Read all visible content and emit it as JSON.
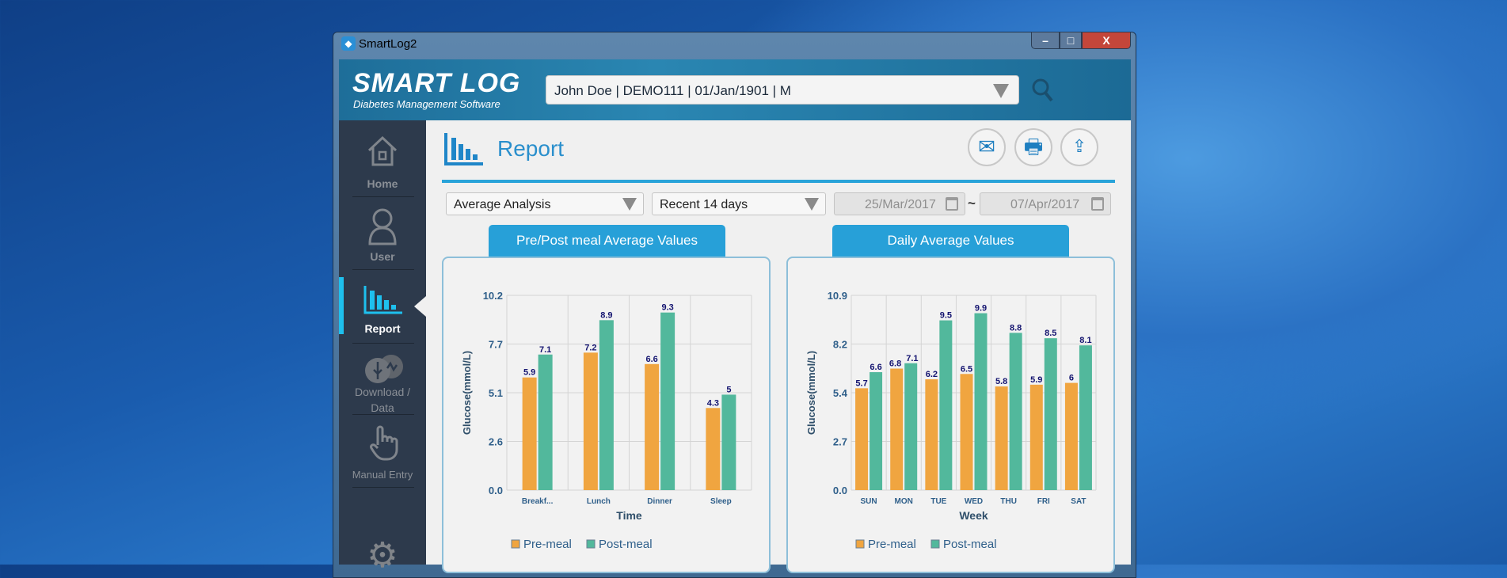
{
  "window": {
    "title": "SmartLog2",
    "controls": [
      "minimize",
      "maximize",
      "close"
    ]
  },
  "header": {
    "logo": "SMART LOG",
    "logo_subtitle": "Diabetes Management Software",
    "patient": "John Doe | DEMO111 | 01/Jan/1901 | M"
  },
  "sidebar": {
    "items": [
      {
        "label": "Home",
        "icon": "home-icon"
      },
      {
        "label": "User",
        "icon": "user-icon"
      },
      {
        "label": "Report",
        "icon": "bar-chart-icon",
        "active": true
      },
      {
        "label1": "Download /",
        "label2": "Data",
        "icon": "usb-sync-icon"
      },
      {
        "label": "Manual Entry",
        "icon": "hand-pointer-icon"
      }
    ],
    "settings_icon": "gear-icon"
  },
  "page": {
    "title": "Report",
    "actions": [
      "email",
      "print",
      "export"
    ]
  },
  "filters": {
    "analysis": "Average Analysis",
    "range": "Recent 14 days",
    "start_date": "25/Mar/2017",
    "separator": "~",
    "end_date": "07/Apr/2017"
  },
  "colors": {
    "pre": "#f0a540",
    "post": "#52b89c",
    "accent": "#27a0d8"
  },
  "chart_data": [
    {
      "type": "bar",
      "title": "Pre/Post meal Average Values",
      "xlabel": "Time",
      "ylabel": "Glucose(mmol/L)",
      "ylim": [
        0,
        10.2
      ],
      "yticks": [
        "0.0",
        "2.6",
        "5.1",
        "7.7",
        "10.2"
      ],
      "grid": true,
      "legend": "bottom",
      "categories": [
        "Breakf...",
        "Lunch",
        "Dinner",
        "Sleep"
      ],
      "series": [
        {
          "name": "Pre-meal",
          "values": [
            5.9,
            7.2,
            6.6,
            4.3
          ]
        },
        {
          "name": "Post-meal",
          "values": [
            7.1,
            8.9,
            9.3,
            5
          ]
        }
      ]
    },
    {
      "type": "bar",
      "title": "Daily Average Values",
      "xlabel": "Week",
      "ylabel": "Glucose(mmol/L)",
      "ylim": [
        0,
        10.9
      ],
      "yticks": [
        "0.0",
        "2.7",
        "5.4",
        "8.2",
        "10.9"
      ],
      "grid": true,
      "legend": "bottom",
      "categories": [
        "SUN",
        "MON",
        "TUE",
        "WED",
        "THU",
        "FRI",
        "SAT"
      ],
      "series": [
        {
          "name": "Pre-meal",
          "values": [
            5.7,
            6.8,
            6.2,
            6.5,
            5.8,
            5.9,
            6
          ]
        },
        {
          "name": "Post-meal",
          "values": [
            6.6,
            7.1,
            9.5,
            9.9,
            8.8,
            8.5,
            8.1
          ]
        }
      ]
    }
  ]
}
